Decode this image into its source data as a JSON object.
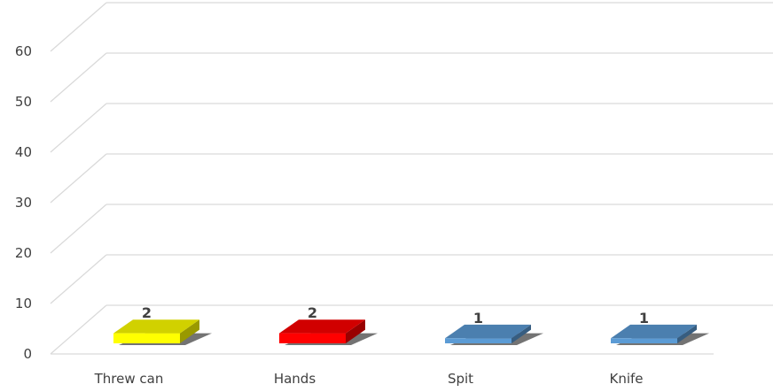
{
  "chart_data": {
    "type": "bar",
    "style": "3d-column",
    "categories": [
      "Threw can",
      "Hands",
      "Spit",
      "Knife"
    ],
    "values": [
      2,
      2,
      1,
      1
    ],
    "data_labels": [
      "2",
      "2",
      "1",
      "1"
    ],
    "colors": [
      "#FFFF00",
      "#FF0000",
      "#5B9BD5",
      "#5B9BD5"
    ],
    "ylim": [
      0,
      65
    ],
    "yticks": [
      0,
      10,
      20,
      30,
      40,
      50,
      60
    ],
    "grid": true,
    "legend": "none",
    "title": "",
    "xlabel": "",
    "ylabel": ""
  }
}
